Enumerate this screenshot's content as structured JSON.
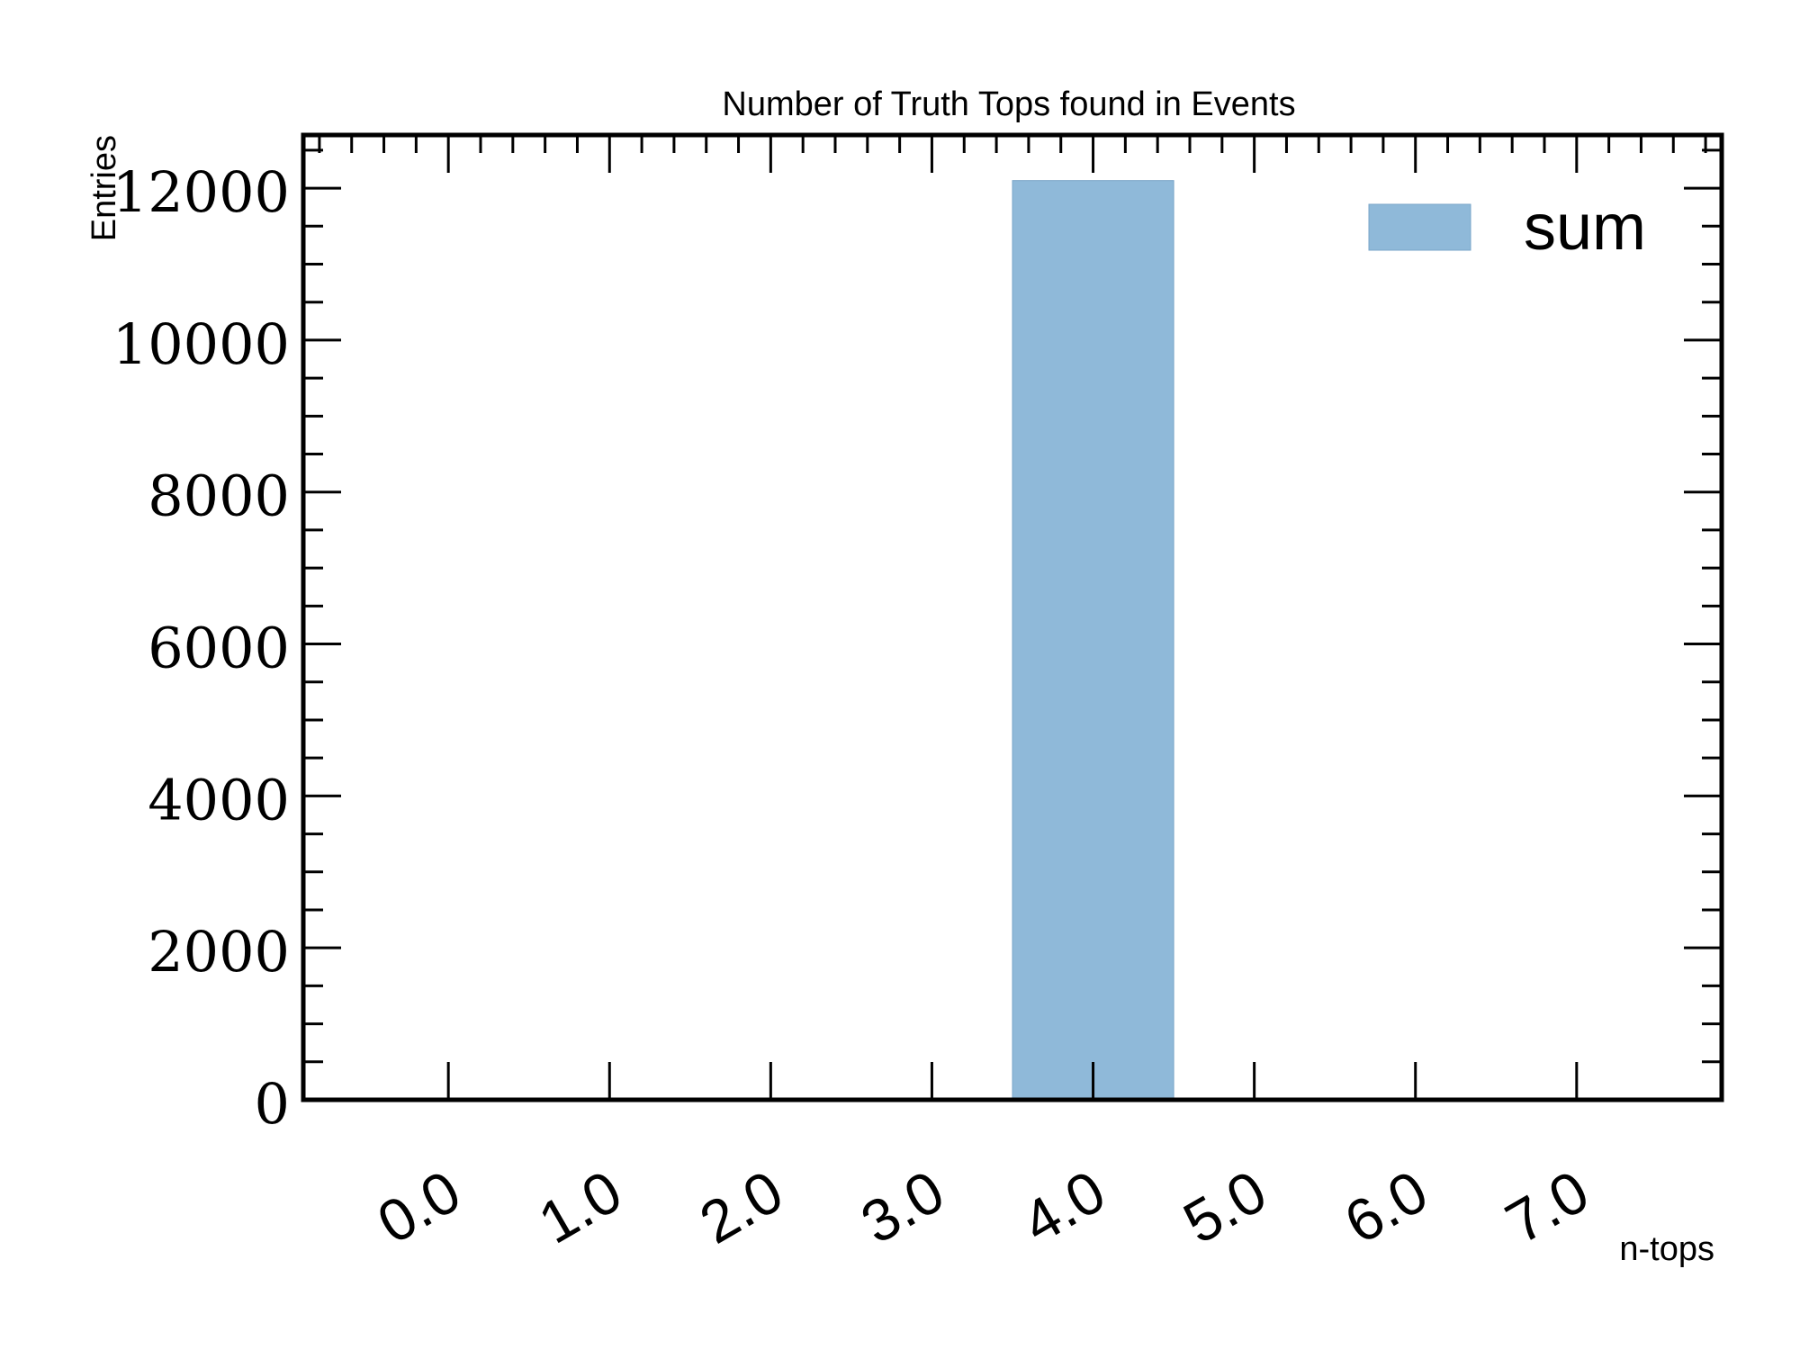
{
  "chart_data": {
    "type": "bar",
    "title": "Number of Truth Tops found in Events",
    "xlabel": "n-tops",
    "ylabel": "Entries",
    "categories": [
      "0.0",
      "1.0",
      "2.0",
      "3.0",
      "4.0",
      "5.0",
      "6.0",
      "7.0"
    ],
    "x_ticks": [
      0,
      1,
      2,
      3,
      4,
      5,
      6,
      7
    ],
    "xlim": [
      -0.9,
      7.9
    ],
    "ylim": [
      0,
      12700
    ],
    "y_ticks": [
      0,
      2000,
      4000,
      6000,
      8000,
      10000,
      12000
    ],
    "y_tick_labels": [
      "0",
      "2000",
      "4000",
      "6000",
      "8000",
      "10000",
      "12000"
    ],
    "bins": [
      {
        "low": 3.5,
        "high": 4.5,
        "value": 12100
      }
    ],
    "series": [
      {
        "name": "sum",
        "color": "#8fb9d9",
        "values": [
          0,
          0,
          0,
          0,
          12100,
          0,
          0,
          0
        ]
      }
    ],
    "legend": {
      "position": "top-right",
      "entries": [
        "sum"
      ]
    },
    "grid": false
  }
}
